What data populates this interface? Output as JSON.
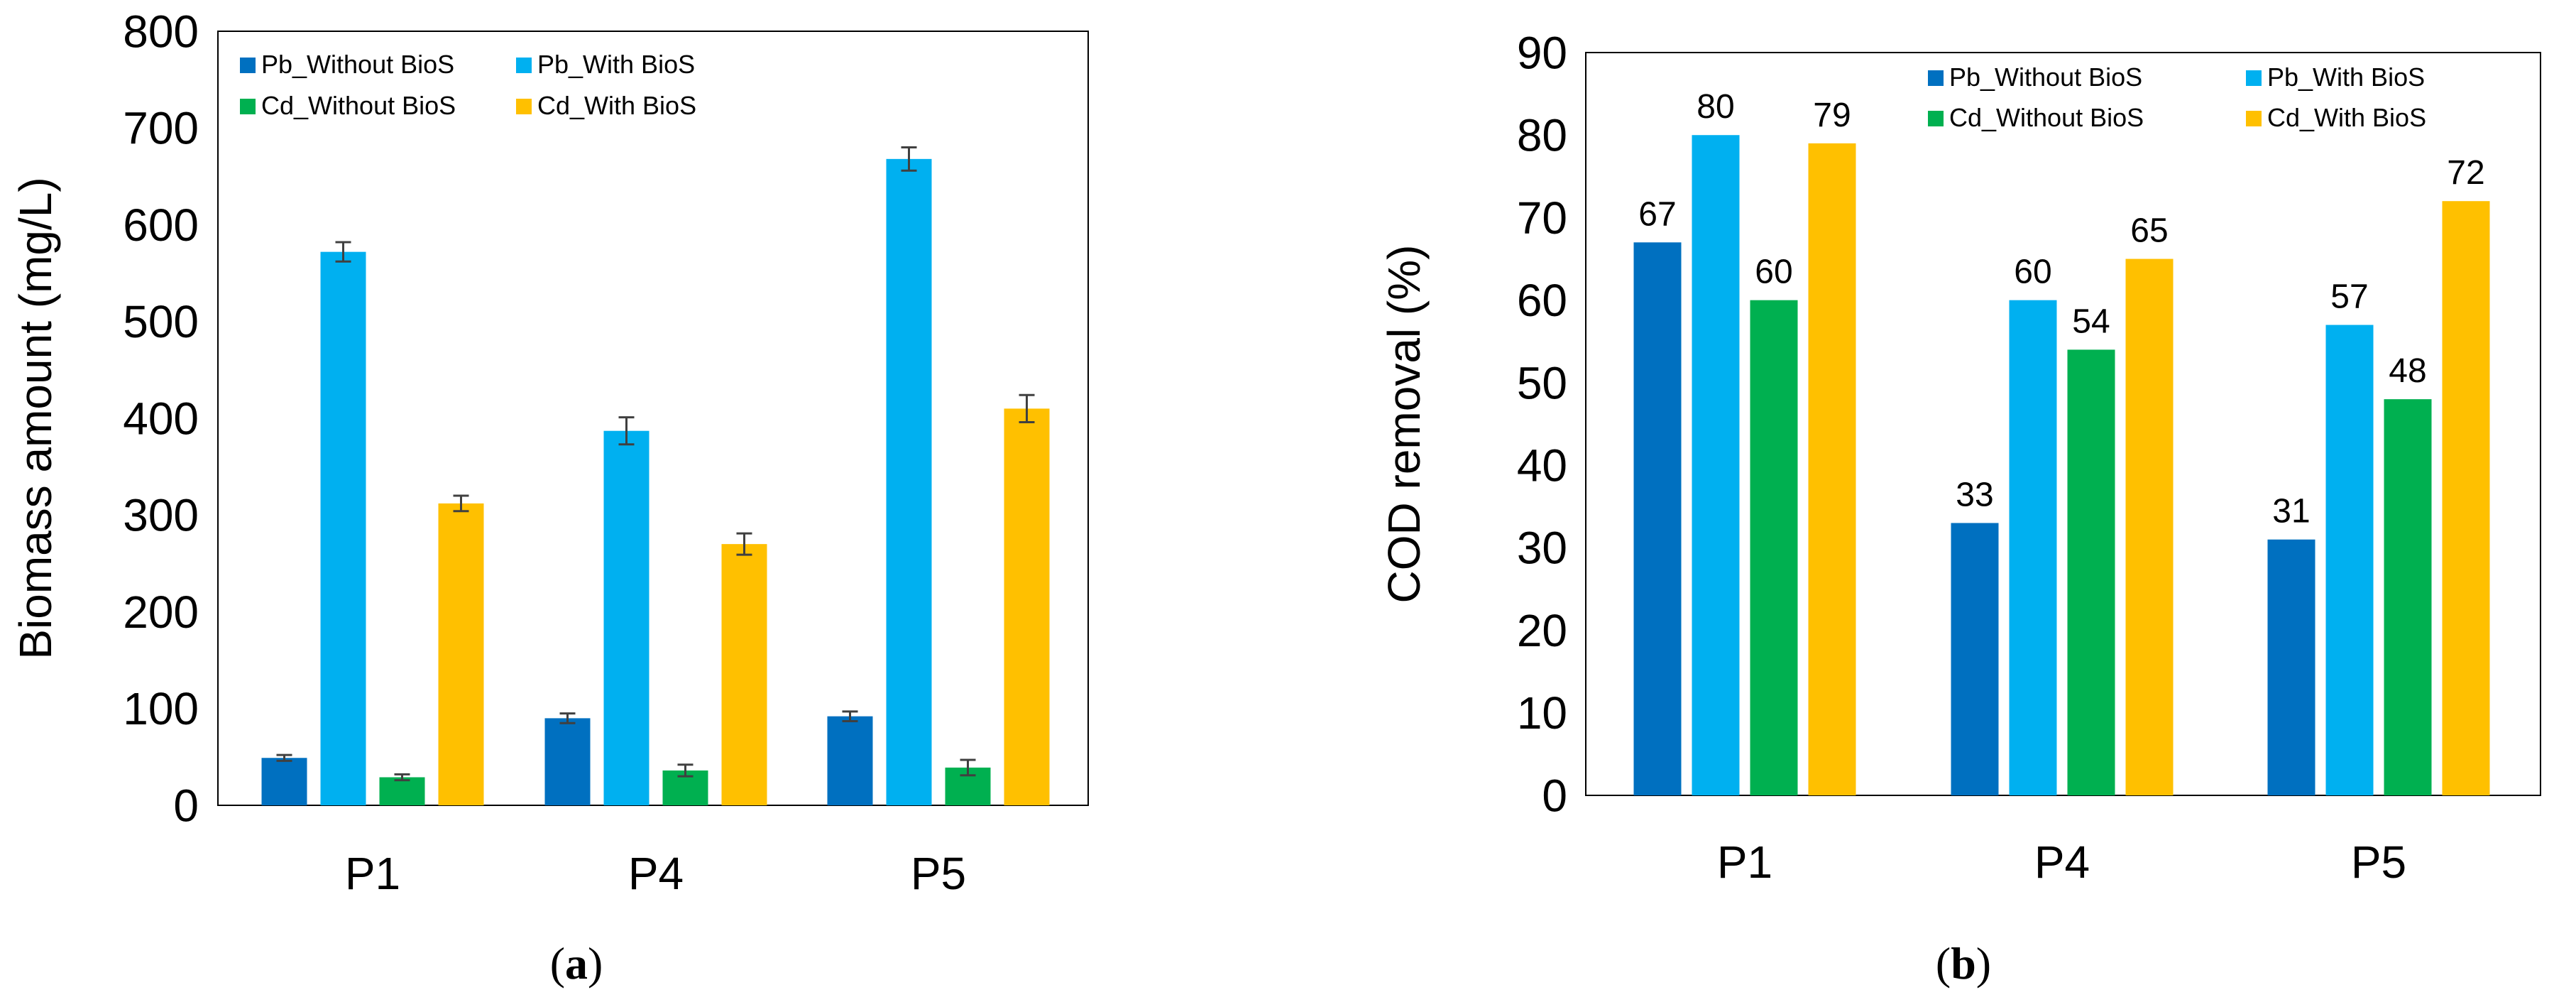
{
  "chart_data": [
    {
      "id": "a",
      "type": "bar",
      "panel_label": "a",
      "ylabel": "Biomass amount (mg/L)",
      "xlabel": "",
      "ylim": [
        0,
        800
      ],
      "ytick_step": 100,
      "yticks": [
        "0",
        "100",
        "200",
        "300",
        "400",
        "500",
        "600",
        "700",
        "800"
      ],
      "categories": [
        "P1",
        "P4",
        "P5"
      ],
      "error_bars": true,
      "data_labels": false,
      "legend_position": "top-left",
      "series": [
        {
          "name": "Pb_Without BioS",
          "color": "#0070C0",
          "values": [
            49,
            90,
            92
          ],
          "errors": [
            3,
            5,
            5
          ]
        },
        {
          "name": "Pb_With BioS",
          "color": "#00B0F0",
          "values": [
            572,
            387,
            668
          ],
          "errors": [
            10,
            14,
            12
          ]
        },
        {
          "name": "Cd_Without BioS",
          "color": "#00B050",
          "values": [
            29,
            36,
            39
          ],
          "errors": [
            3,
            6,
            8
          ]
        },
        {
          "name": "Cd_With BioS",
          "color": "#FFC000",
          "values": [
            312,
            270,
            410
          ],
          "errors": [
            8,
            11,
            14
          ]
        }
      ]
    },
    {
      "id": "b",
      "type": "bar",
      "panel_label": "b",
      "ylabel": "COD removal (%)",
      "xlabel": "",
      "ylim": [
        0,
        90
      ],
      "ytick_step": 10,
      "yticks": [
        "0",
        "10",
        "20",
        "30",
        "40",
        "50",
        "60",
        "70",
        "80",
        "90"
      ],
      "categories": [
        "P1",
        "P4",
        "P5"
      ],
      "error_bars": false,
      "data_labels": true,
      "legend_position": "top-right",
      "series": [
        {
          "name": "Pb_Without BioS",
          "color": "#0070C0",
          "values": [
            67,
            33,
            31
          ],
          "labels": [
            "67",
            "33",
            "31"
          ]
        },
        {
          "name": "Pb_With BioS",
          "color": "#00B0F0",
          "values": [
            80,
            60,
            57
          ],
          "labels": [
            "80",
            "60",
            "57"
          ]
        },
        {
          "name": "Cd_Without BioS",
          "color": "#00B050",
          "values": [
            60,
            54,
            48
          ],
          "labels": [
            "60",
            "54",
            "48"
          ]
        },
        {
          "name": "Cd_With BioS",
          "color": "#FFC000",
          "values": [
            79,
            65,
            72
          ],
          "labels": [
            "79",
            "65",
            "72"
          ]
        }
      ]
    }
  ]
}
